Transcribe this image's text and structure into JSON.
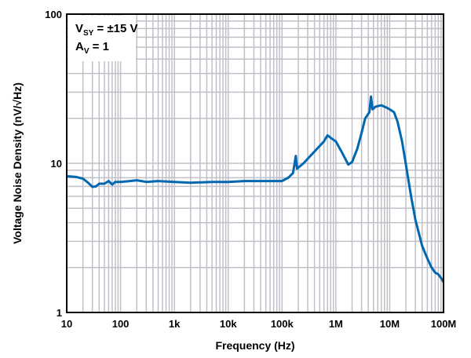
{
  "chart_data": {
    "type": "line",
    "xlabel": "Frequency (Hz)",
    "ylabel": "Voltage Noise Density (nV/√Hz)",
    "x_scale": "log",
    "y_scale": "log",
    "xlim": [
      10,
      100000000
    ],
    "ylim": [
      1,
      100
    ],
    "grid": true,
    "x_ticks": [
      {
        "v": 10,
        "label": "10"
      },
      {
        "v": 100,
        "label": "100"
      },
      {
        "v": 1000,
        "label": "1k"
      },
      {
        "v": 10000,
        "label": "10k"
      },
      {
        "v": 100000,
        "label": "100k"
      },
      {
        "v": 1000000,
        "label": "1M"
      },
      {
        "v": 10000000,
        "label": "10M"
      },
      {
        "v": 100000000,
        "label": "100M"
      }
    ],
    "y_ticks": [
      {
        "v": 1,
        "label": "1"
      },
      {
        "v": 10,
        "label": "10"
      },
      {
        "v": 100,
        "label": "100"
      }
    ],
    "annotation": {
      "line1_main": "V",
      "line1_sub": "SY",
      "line1_rest": " = ±15 V",
      "line2_main": "A",
      "line2_sub": "V",
      "line2_rest": " = 1"
    },
    "line_color": "#0067b1",
    "grid_color": "#c0c0c8",
    "series": [
      {
        "x": [
          10,
          15,
          20,
          25,
          30,
          35,
          40,
          50,
          60,
          70,
          80,
          100,
          150,
          200,
          300,
          500,
          1000,
          2000,
          5000,
          10000,
          20000,
          50000,
          100000,
          130000,
          160000,
          180000,
          190000,
          250000,
          400000,
          600000,
          700000,
          850000,
          1000000,
          1300000,
          1700000,
          2000000,
          2500000,
          3000000,
          3500000,
          4200000,
          4500000,
          4800000,
          5500000,
          7000000,
          9000000,
          10000000,
          12000000,
          14000000,
          17000000,
          20000000,
          25000000,
          30000000,
          40000000,
          50000000,
          60000000,
          70000000,
          80000000,
          90000000,
          100000000
        ],
        "y": [
          8.2,
          8.1,
          7.9,
          7.4,
          6.95,
          7.0,
          7.3,
          7.3,
          7.6,
          7.2,
          7.5,
          7.5,
          7.6,
          7.7,
          7.5,
          7.6,
          7.5,
          7.4,
          7.5,
          7.5,
          7.6,
          7.6,
          7.6,
          8.0,
          8.6,
          11.2,
          9.2,
          10.0,
          12.0,
          14.0,
          15.4,
          14.6,
          14.0,
          11.8,
          9.8,
          10.2,
          12.5,
          16.0,
          20.0,
          22.0,
          28.0,
          23.0,
          24.0,
          24.5,
          23.5,
          23.0,
          22.0,
          19.0,
          14.0,
          9.8,
          6.0,
          4.2,
          2.8,
          2.3,
          2.0,
          1.85,
          1.8,
          1.7,
          1.6
        ]
      }
    ]
  }
}
